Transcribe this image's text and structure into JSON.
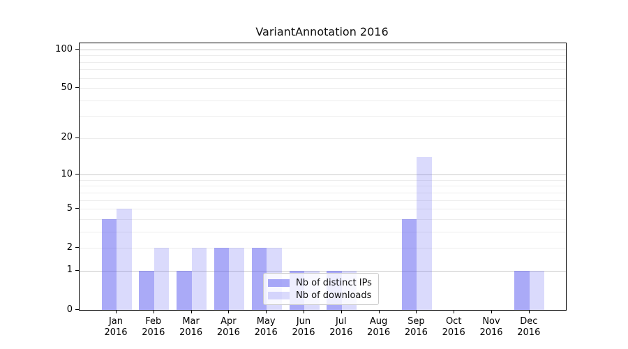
{
  "title": "VariantAnnotation 2016",
  "chart_data": {
    "type": "bar",
    "title": "VariantAnnotation 2016",
    "categories": [
      "Jan",
      "Feb",
      "Mar",
      "Apr",
      "May",
      "Jun",
      "Jul",
      "Aug",
      "Sep",
      "Oct",
      "Nov",
      "Dec"
    ],
    "year": "2016",
    "series": [
      {
        "name": "Nb of distinct IPs",
        "color": "rgba(86,86,240,0.50)",
        "values": [
          4,
          1,
          1,
          2,
          2,
          1,
          1,
          0,
          4,
          0,
          0,
          1
        ]
      },
      {
        "name": "Nb of downloads",
        "color": "rgba(86,86,240,0.22)",
        "values": [
          5,
          2,
          2,
          2,
          2,
          1,
          1,
          0,
          14,
          0,
          0,
          1
        ]
      }
    ],
    "y_ticks": [
      0,
      1,
      2,
      5,
      10,
      20,
      50,
      100
    ],
    "major_gridlines": [
      1,
      10,
      100
    ],
    "minor_gridlines": [
      2,
      3,
      4,
      5,
      6,
      7,
      8,
      9,
      20,
      30,
      40,
      50,
      60,
      70,
      80,
      90
    ],
    "scale": "log10(1+x)",
    "ylim": [
      0,
      112
    ],
    "xlabel": "",
    "ylabel": "",
    "grid": true,
    "legend_position": "lower center (inside plot)"
  }
}
